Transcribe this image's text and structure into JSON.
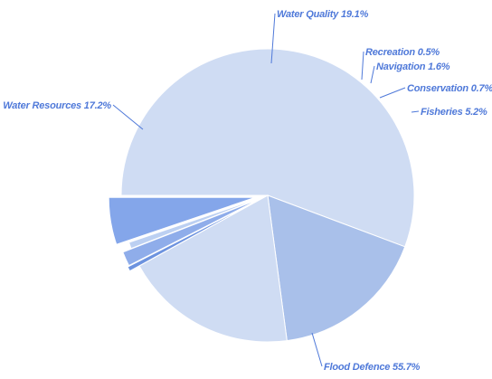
{
  "chart_data": {
    "type": "pie",
    "title": "",
    "slices": [
      {
        "label": "Flood Defence",
        "value": 55.7,
        "display": "Flood Defence 55.7%",
        "color": "#cfdcf3"
      },
      {
        "label": "Water Resources",
        "value": 17.2,
        "display": "Water Resources 17.2%",
        "color": "#a9c0ea"
      },
      {
        "label": "Water Quality",
        "value": 19.1,
        "display": "Water Quality 19.1%",
        "color": "#cfdcf3"
      },
      {
        "label": "Recreation",
        "value": 0.5,
        "display": "Recreation 0.5%",
        "color": "#6d93df"
      },
      {
        "label": "Navigation",
        "value": 1.6,
        "display": "Navigation 1.6%",
        "color": "#8fadea"
      },
      {
        "label": "Conservation",
        "value": 0.7,
        "display": "Conservation 0.7%",
        "color": "#bcd0f2"
      },
      {
        "label": "Fisheries",
        "value": 5.2,
        "display": "Fisheries 5.2%",
        "color": "#84a6ea"
      }
    ],
    "legend": "none",
    "label_color": "#4f79d9"
  }
}
